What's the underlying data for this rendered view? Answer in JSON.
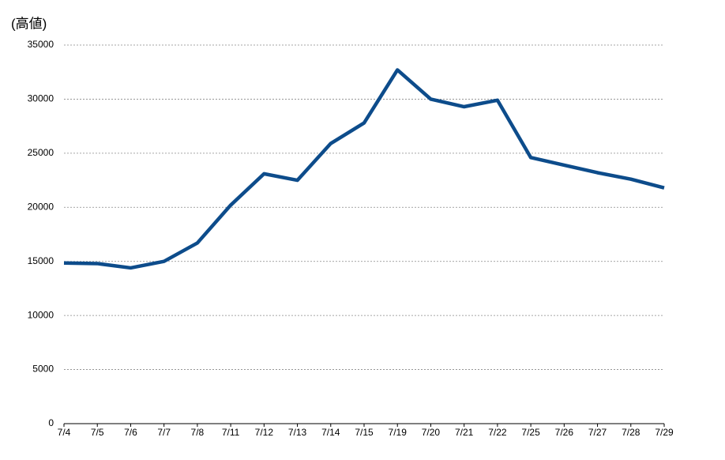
{
  "chart_data": {
    "type": "line",
    "title": "(高値)",
    "categories": [
      "7/4",
      "7/5",
      "7/6",
      "7/7",
      "7/8",
      "7/11",
      "7/12",
      "7/13",
      "7/14",
      "7/15",
      "7/19",
      "7/20",
      "7/21",
      "7/22",
      "7/25",
      "7/26",
      "7/27",
      "7/28",
      "7/29"
    ],
    "series": [
      {
        "name": "高値",
        "color": "#0d4c8b",
        "values": [
          14850,
          14800,
          14400,
          15000,
          16700,
          20200,
          23100,
          22500,
          25900,
          27800,
          32700,
          30000,
          29300,
          29900,
          24600,
          23900,
          23200,
          22600,
          21800
        ]
      }
    ],
    "ylim": [
      0,
      35000
    ],
    "yticks": [
      0,
      5000,
      10000,
      15000,
      20000,
      25000,
      30000,
      35000
    ],
    "grid": true
  }
}
